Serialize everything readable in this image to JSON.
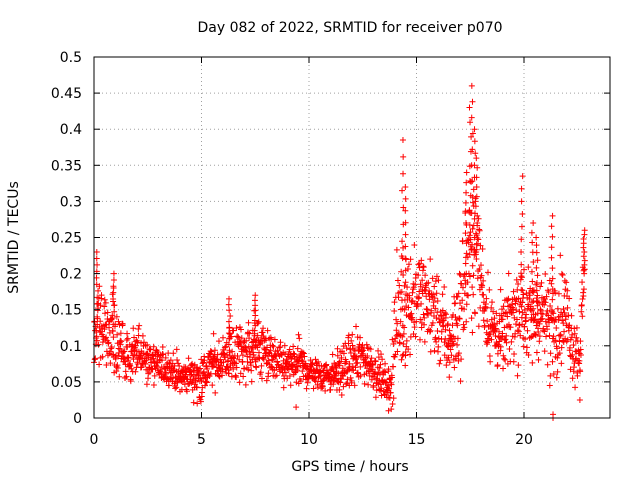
{
  "chart_data": {
    "type": "scatter",
    "title": "Day 082 of 2022, SRMTID for receiver p070",
    "xlabel": "GPS time / hours",
    "ylabel": "SRMTID / TECUs",
    "xlim": [
      0,
      24
    ],
    "ylim": [
      0,
      0.5
    ],
    "xticks": [
      0,
      5,
      10,
      15,
      20
    ],
    "yticks": [
      0,
      0.05,
      0.1,
      0.15,
      0.2,
      0.25,
      0.3,
      0.35,
      0.4,
      0.45,
      0.5
    ],
    "grid": true,
    "marker": "+",
    "color": "#ff0000",
    "series": [
      {
        "name": "SRMTID",
        "approx_profile": {
          "x": [
            0,
            0.15,
            0.5,
            1,
            1.5,
            2,
            2.5,
            3,
            3.5,
            4,
            4.5,
            5,
            5.5,
            6,
            6.5,
            7,
            7.5,
            8,
            8.5,
            9,
            9.5,
            10,
            10.5,
            11,
            11.5,
            12,
            12.5,
            13,
            13.5,
            13.8,
            14,
            14.3,
            14.7,
            15,
            15.5,
            16,
            16.5,
            17,
            17.3,
            17.6,
            17.9,
            18.2,
            18.6,
            19,
            19.5,
            19.9,
            20.3,
            20.7,
            21.1,
            21.5,
            21.9,
            22.3,
            22.6,
            22.8
          ],
          "center": [
            0.11,
            0.14,
            0.12,
            0.11,
            0.08,
            0.09,
            0.08,
            0.07,
            0.07,
            0.055,
            0.06,
            0.055,
            0.075,
            0.08,
            0.09,
            0.09,
            0.1,
            0.09,
            0.075,
            0.07,
            0.075,
            0.065,
            0.06,
            0.06,
            0.065,
            0.08,
            0.085,
            0.07,
            0.05,
            0.04,
            0.12,
            0.15,
            0.16,
            0.17,
            0.16,
            0.14,
            0.1,
            0.14,
            0.2,
            0.24,
            0.22,
            0.15,
            0.12,
            0.11,
            0.14,
            0.16,
            0.13,
            0.15,
            0.13,
            0.14,
            0.15,
            0.1,
            0.09,
            0.2
          ],
          "spread": [
            0.04,
            0.05,
            0.04,
            0.05,
            0.03,
            0.03,
            0.03,
            0.02,
            0.02,
            0.02,
            0.02,
            0.025,
            0.025,
            0.03,
            0.035,
            0.035,
            0.035,
            0.03,
            0.025,
            0.025,
            0.025,
            0.02,
            0.02,
            0.02,
            0.025,
            0.03,
            0.03,
            0.025,
            0.02,
            0.02,
            0.06,
            0.08,
            0.06,
            0.05,
            0.05,
            0.05,
            0.04,
            0.06,
            0.08,
            0.08,
            0.06,
            0.05,
            0.04,
            0.04,
            0.05,
            0.06,
            0.05,
            0.05,
            0.05,
            0.06,
            0.05,
            0.04,
            0.035,
            0.05
          ]
        },
        "peaks": [
          {
            "x": 14.35,
            "y": 0.385
          },
          {
            "x": 14.5,
            "y": 0.32
          },
          {
            "x": 17.6,
            "y": 0.46
          },
          {
            "x": 17.5,
            "y": 0.43
          },
          {
            "x": 17.7,
            "y": 0.4
          },
          {
            "x": 17.8,
            "y": 0.36
          },
          {
            "x": 17.3,
            "y": 0.34
          },
          {
            "x": 19.9,
            "y": 0.335
          },
          {
            "x": 20.4,
            "y": 0.27
          },
          {
            "x": 20.6,
            "y": 0.25
          },
          {
            "x": 21.3,
            "y": 0.28
          },
          {
            "x": 22.8,
            "y": 0.26
          },
          {
            "x": 0.15,
            "y": 0.23
          },
          {
            "x": 0.9,
            "y": 0.2
          },
          {
            "x": 7.5,
            "y": 0.17
          },
          {
            "x": 6.3,
            "y": 0.165
          }
        ],
        "lows": [
          {
            "x": 21.35,
            "y": 0.0
          },
          {
            "x": 21.35,
            "y": 0.005
          },
          {
            "x": 13.7,
            "y": 0.01
          },
          {
            "x": 9.4,
            "y": 0.015
          },
          {
            "x": 4.8,
            "y": 0.02
          },
          {
            "x": 22.6,
            "y": 0.025
          },
          {
            "x": 21.2,
            "y": 0.045
          }
        ]
      }
    ]
  }
}
